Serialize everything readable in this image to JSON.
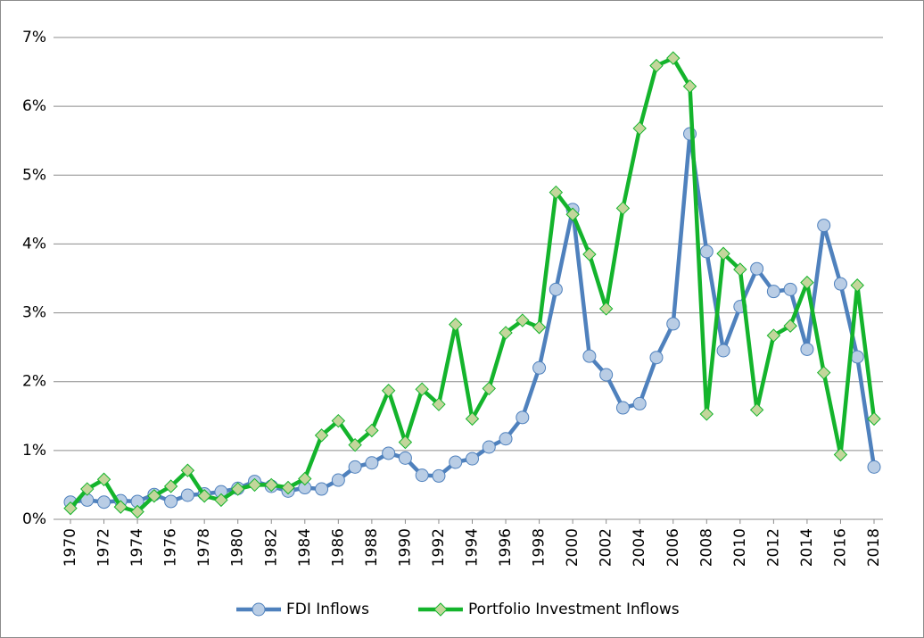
{
  "chart_data": {
    "type": "line",
    "x": [
      1970,
      1971,
      1972,
      1973,
      1974,
      1975,
      1976,
      1977,
      1978,
      1979,
      1980,
      1981,
      1982,
      1983,
      1984,
      1985,
      1986,
      1987,
      1988,
      1989,
      1990,
      1991,
      1992,
      1993,
      1994,
      1995,
      1996,
      1997,
      1998,
      1999,
      2000,
      2001,
      2002,
      2003,
      2004,
      2005,
      2006,
      2007,
      2008,
      2009,
      2010,
      2011,
      2012,
      2013,
      2014,
      2015,
      2016,
      2017,
      2018
    ],
    "xlim": [
      1970,
      2018
    ],
    "xticks": [
      1970,
      1972,
      1974,
      1976,
      1978,
      1980,
      1982,
      1984,
      1986,
      1988,
      1990,
      1992,
      1994,
      1996,
      1998,
      2000,
      2002,
      2004,
      2006,
      2008,
      2010,
      2012,
      2014,
      2016,
      2018
    ],
    "ylim": [
      0,
      7
    ],
    "yticks": [
      {
        "value": 0,
        "label": "0%"
      },
      {
        "value": 1,
        "label": "1%"
      },
      {
        "value": 2,
        "label": "2%"
      },
      {
        "value": 3,
        "label": "3%"
      },
      {
        "value": 4,
        "label": "4%"
      },
      {
        "value": 5,
        "label": "5%"
      },
      {
        "value": 6,
        "label": "6%"
      },
      {
        "value": 7,
        "label": "7%"
      }
    ],
    "grid": true,
    "legend": "bottom",
    "series": [
      {
        "name": "FDI Inflows",
        "color": "#4f81bd",
        "marker": "circle",
        "marker_fill": "#b9cde5",
        "values": [
          0.25,
          0.28,
          0.25,
          0.27,
          0.26,
          0.36,
          0.26,
          0.35,
          0.37,
          0.4,
          0.45,
          0.55,
          0.48,
          0.41,
          0.46,
          0.44,
          0.57,
          0.76,
          0.82,
          0.96,
          0.89,
          0.64,
          0.63,
          0.83,
          0.88,
          1.05,
          1.17,
          1.48,
          2.2,
          3.34,
          4.5,
          2.37,
          2.1,
          1.62,
          1.68,
          2.35,
          2.84,
          5.6,
          3.89,
          2.45,
          3.09,
          3.64,
          3.31,
          3.34,
          2.47,
          4.27,
          3.42,
          2.36,
          0.76
        ]
      },
      {
        "name": "Portfolio Investment Inflows",
        "color": "#14b42c",
        "marker": "diamond",
        "marker_fill": "#c3d69b",
        "values": [
          0.16,
          0.44,
          0.58,
          0.18,
          0.11,
          0.34,
          0.48,
          0.71,
          0.34,
          0.28,
          0.44,
          0.5,
          0.5,
          0.46,
          0.59,
          1.22,
          1.43,
          1.08,
          1.29,
          1.87,
          1.12,
          1.89,
          1.67,
          2.83,
          1.46,
          1.9,
          2.71,
          2.89,
          2.79,
          4.75,
          4.43,
          3.85,
          3.06,
          4.52,
          5.68,
          6.59,
          6.7,
          6.29,
          1.53,
          3.86,
          3.63,
          1.59,
          2.67,
          2.81,
          3.44,
          2.13,
          0.94,
          3.4,
          1.46
        ]
      }
    ]
  }
}
